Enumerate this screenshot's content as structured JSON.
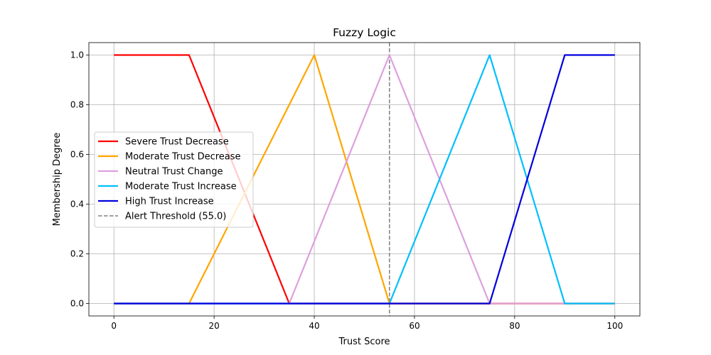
{
  "chart_data": {
    "type": "line",
    "title": "Fuzzy Logic",
    "xlabel": "Trust Score",
    "ylabel": "Membership Degree",
    "xlim": [
      -5,
      105
    ],
    "ylim": [
      -0.05,
      1.05
    ],
    "xticks": [
      0,
      20,
      40,
      60,
      80,
      100
    ],
    "xtick_labels": [
      "0",
      "20",
      "40",
      "60",
      "80",
      "100"
    ],
    "yticks": [
      0,
      0.2,
      0.4,
      0.6,
      0.8,
      1.0
    ],
    "ytick_labels": [
      "0.0",
      "0.2",
      "0.4",
      "0.6",
      "0.8",
      "1.0"
    ],
    "grid": true,
    "legend_position": "center-left",
    "series": [
      {
        "name": "Severe Trust Decrease",
        "color": "#ff0000",
        "x": [
          0,
          15,
          35,
          100
        ],
        "y": [
          1,
          1,
          0,
          0
        ]
      },
      {
        "name": "Moderate Trust Decrease",
        "color": "#ffa500",
        "x": [
          0,
          15,
          40,
          55,
          100
        ],
        "y": [
          0,
          0,
          1,
          0,
          0
        ]
      },
      {
        "name": "Neutral Trust Change",
        "color": "#dda0dd",
        "x": [
          0,
          35,
          55,
          75,
          100
        ],
        "y": [
          0,
          0,
          1,
          0,
          0
        ]
      },
      {
        "name": "Moderate Trust Increase",
        "color": "#00bfff",
        "x": [
          0,
          55,
          75,
          90,
          100
        ],
        "y": [
          0,
          0,
          1,
          0,
          0
        ]
      },
      {
        "name": "High Trust Increase",
        "color": "#0000dd",
        "x": [
          0,
          75,
          90,
          100
        ],
        "y": [
          0,
          0,
          1,
          1
        ]
      }
    ],
    "threshold": {
      "name": "Alert Threshold (55.0)",
      "x": 55.0,
      "color": "#808080",
      "style": "dashed"
    }
  }
}
